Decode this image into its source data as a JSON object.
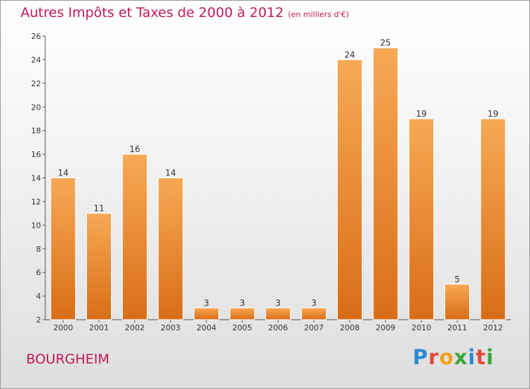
{
  "header": {
    "title": "Autres Impôts et Taxes de 2000 à 2012",
    "subtitle": "(en milliers d'€)"
  },
  "commune": "BOURGHEIM",
  "logo": {
    "text": "Proxiti",
    "letters": [
      "P",
      "r",
      "o",
      "x",
      "i",
      "t",
      "i"
    ],
    "colors": [
      "#2b8bd1",
      "#e34b3b",
      "#f0a11b",
      "#3aa537",
      "#2b8bd1",
      "#e34b3b",
      "#3aa537"
    ]
  },
  "colors": {
    "title": "#c2185b",
    "bar_light": "#f7a955",
    "bar_dark": "#d96d17"
  },
  "chart_data": {
    "type": "bar",
    "categories": [
      "2000",
      "2001",
      "2002",
      "2003",
      "2004",
      "2005",
      "2006",
      "2007",
      "2008",
      "2009",
      "2010",
      "2011",
      "2012"
    ],
    "values": [
      14,
      11,
      16,
      14,
      3,
      3,
      3,
      3,
      24,
      25,
      19,
      5,
      19
    ],
    "ylim": [
      2,
      26
    ],
    "yticks": [
      2,
      4,
      6,
      8,
      10,
      12,
      14,
      16,
      18,
      20,
      22,
      24,
      26
    ],
    "grid": false,
    "legend": "none"
  }
}
